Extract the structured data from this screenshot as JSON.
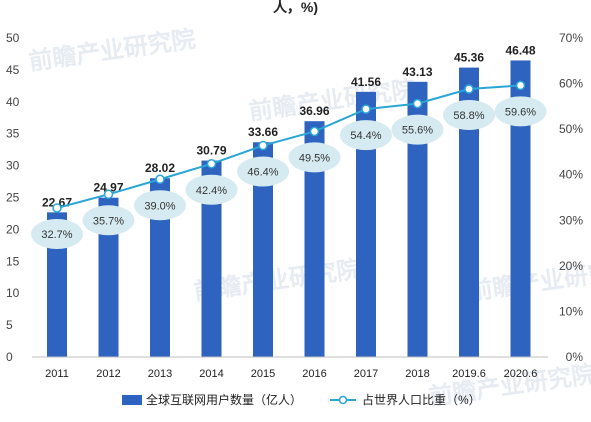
{
  "header": {
    "title_fragment": "人，%)"
  },
  "watermark": {
    "text": "前瞻产业研究院"
  },
  "chart_data": {
    "type": "bar",
    "title": "",
    "categories": [
      "2011",
      "2012",
      "2013",
      "2014",
      "2015",
      "2016",
      "2017",
      "2018",
      "2019.6",
      "2020.6"
    ],
    "series": [
      {
        "name": "全球互联网用户数量（亿人）",
        "kind": "bar",
        "axis": "left",
        "values": [
          22.67,
          24.97,
          28.02,
          30.79,
          33.66,
          36.96,
          41.56,
          43.13,
          45.36,
          46.48
        ],
        "labels": [
          "22.67",
          "24.97",
          "28.02",
          "30.79",
          "33.66",
          "36.96",
          "41.56",
          "43.13",
          "45.36",
          "46.48"
        ]
      },
      {
        "name": "占世界人口比重（%）",
        "kind": "line",
        "axis": "right",
        "values": [
          32.7,
          35.7,
          39.0,
          42.4,
          46.4,
          49.5,
          54.4,
          55.6,
          58.8,
          59.6
        ],
        "labels": [
          "32.7%",
          "35.7%",
          "39.0%",
          "42.4%",
          "46.4%",
          "49.5%",
          "54.4%",
          "55.6%",
          "58.8%",
          "59.6%"
        ]
      }
    ],
    "y_left": {
      "min": 0,
      "max": 50,
      "ticks": [
        "0",
        "5",
        "10",
        "15",
        "20",
        "25",
        "30",
        "35",
        "40",
        "45",
        "50"
      ]
    },
    "y_right": {
      "min": 0,
      "max": 70,
      "ticks": [
        "0%",
        "10%",
        "20%",
        "30%",
        "40%",
        "50%",
        "60%",
        "70%"
      ]
    },
    "grid": false,
    "legend_position": "bottom",
    "colors": {
      "bar": "#2e63c0",
      "line": "#29a6d6",
      "label_ellipse": "#d6ebf1",
      "marker_fill": "#ffffff"
    }
  }
}
